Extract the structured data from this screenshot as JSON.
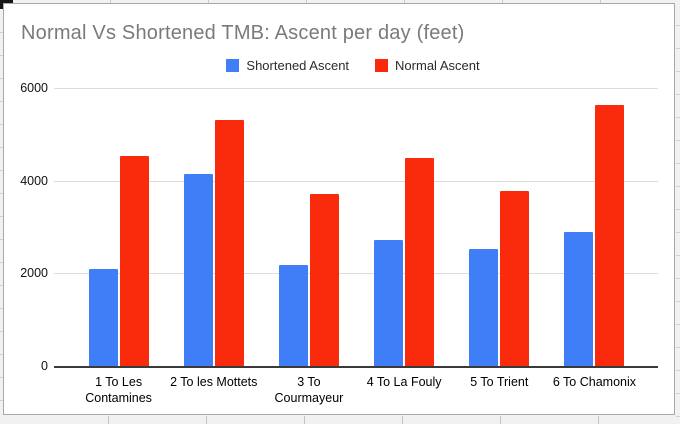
{
  "chart_data": {
    "type": "bar",
    "title": "Normal Vs Shortened TMB: Ascent per day (feet)",
    "categories": [
      "1 To Les\nContamines",
      "2 To les Mottets",
      "3 To\nCourmayeur",
      "4 To La Fouly",
      "5 To Trient",
      "6 To Chamonix"
    ],
    "series": [
      {
        "name": "Shortened Ascent",
        "color": "#407ef7",
        "values": [
          2100,
          4150,
          2180,
          2720,
          2530,
          2890
        ]
      },
      {
        "name": "Normal Ascent",
        "color": "#fa2a0d",
        "values": [
          4530,
          5300,
          3720,
          4480,
          3780,
          5630
        ]
      }
    ],
    "y_ticks": [
      6000,
      4000,
      2000,
      0
    ],
    "ylim": [
      0,
      6000
    ],
    "xlabel": "",
    "ylabel": "",
    "legend_position": "top-center",
    "grid": true
  },
  "colors": {
    "title": "#7a7a7a",
    "axis_label": "#111111",
    "gridline": "#dcdcdc",
    "baseline": "#3a3a3a",
    "card_border": "#a9a9a9",
    "series_blue": "#407ef7",
    "series_red": "#fa2a0d"
  }
}
